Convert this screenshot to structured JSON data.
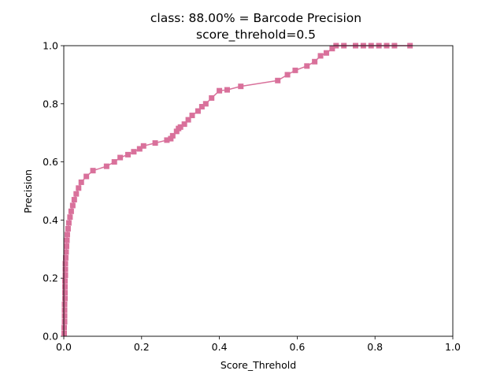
{
  "chart_data": {
    "type": "line",
    "title": "class: 88.00% = Barcode Precision",
    "subtitle": "score_threhold=0.5",
    "xlabel": "Score_Threhold",
    "ylabel": "Precision",
    "xlim": [
      0,
      1
    ],
    "ylim": [
      0,
      1
    ],
    "xticks": [
      "0.0",
      "0.2",
      "0.4",
      "0.6",
      "0.8",
      "1.0"
    ],
    "yticks": [
      "0.0",
      "0.2",
      "0.4",
      "0.6",
      "0.8",
      "1.0"
    ],
    "grid": false,
    "legend": "none",
    "series": [
      {
        "color": "#d9719b",
        "marker": "square",
        "points": [
          [
            0.001,
            0.01
          ],
          [
            0.001,
            0.03
          ],
          [
            0.002,
            0.05
          ],
          [
            0.002,
            0.07
          ],
          [
            0.002,
            0.09
          ],
          [
            0.002,
            0.11
          ],
          [
            0.003,
            0.13
          ],
          [
            0.003,
            0.15
          ],
          [
            0.003,
            0.17
          ],
          [
            0.003,
            0.19
          ],
          [
            0.004,
            0.21
          ],
          [
            0.004,
            0.23
          ],
          [
            0.004,
            0.25
          ],
          [
            0.005,
            0.27
          ],
          [
            0.006,
            0.29
          ],
          [
            0.007,
            0.31
          ],
          [
            0.008,
            0.33
          ],
          [
            0.009,
            0.35
          ],
          [
            0.011,
            0.37
          ],
          [
            0.013,
            0.39
          ],
          [
            0.016,
            0.41
          ],
          [
            0.019,
            0.43
          ],
          [
            0.023,
            0.45
          ],
          [
            0.027,
            0.47
          ],
          [
            0.032,
            0.49
          ],
          [
            0.038,
            0.51
          ],
          [
            0.045,
            0.53
          ],
          [
            0.058,
            0.55
          ],
          [
            0.075,
            0.57
          ],
          [
            0.11,
            0.585
          ],
          [
            0.13,
            0.6
          ],
          [
            0.145,
            0.615
          ],
          [
            0.165,
            0.625
          ],
          [
            0.18,
            0.635
          ],
          [
            0.195,
            0.645
          ],
          [
            0.205,
            0.655
          ],
          [
            0.235,
            0.665
          ],
          [
            0.265,
            0.675
          ],
          [
            0.275,
            0.68
          ],
          [
            0.28,
            0.69
          ],
          [
            0.29,
            0.705
          ],
          [
            0.295,
            0.715
          ],
          [
            0.3,
            0.72
          ],
          [
            0.31,
            0.73
          ],
          [
            0.32,
            0.745
          ],
          [
            0.33,
            0.76
          ],
          [
            0.345,
            0.775
          ],
          [
            0.355,
            0.79
          ],
          [
            0.365,
            0.8
          ],
          [
            0.38,
            0.82
          ],
          [
            0.4,
            0.845
          ],
          [
            0.42,
            0.848
          ],
          [
            0.455,
            0.86
          ],
          [
            0.55,
            0.88
          ],
          [
            0.575,
            0.9
          ],
          [
            0.595,
            0.915
          ],
          [
            0.625,
            0.93
          ],
          [
            0.645,
            0.945
          ],
          [
            0.66,
            0.965
          ],
          [
            0.675,
            0.975
          ],
          [
            0.69,
            0.99
          ],
          [
            0.7,
            1.0
          ],
          [
            0.72,
            1.0
          ],
          [
            0.75,
            1.0
          ],
          [
            0.77,
            1.0
          ],
          [
            0.79,
            1.0
          ],
          [
            0.81,
            1.0
          ],
          [
            0.83,
            1.0
          ],
          [
            0.85,
            1.0
          ],
          [
            0.89,
            1.0
          ]
        ]
      }
    ]
  }
}
